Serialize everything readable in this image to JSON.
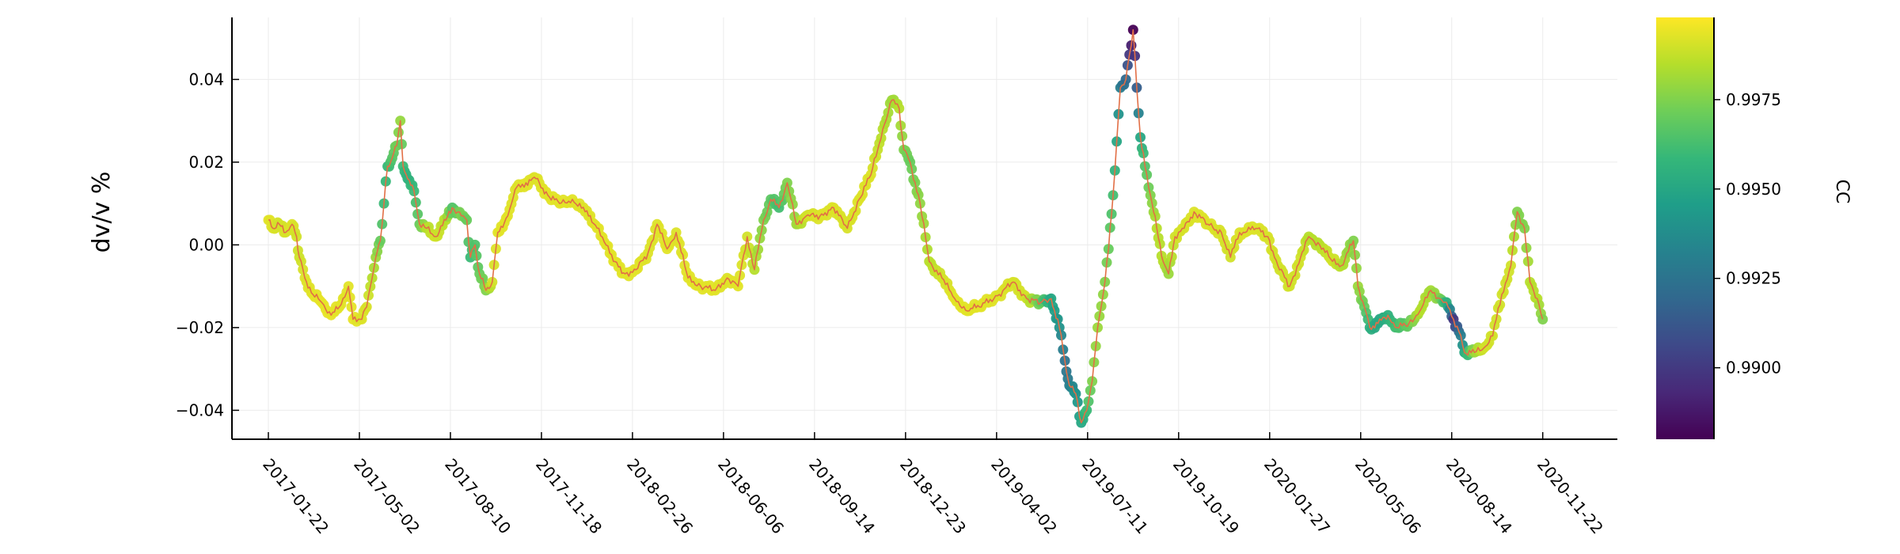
{
  "chart_data": {
    "type": "scatter",
    "title": "",
    "xlabel": "",
    "ylabel": "dv/v %",
    "ylim": [
      -0.047,
      0.055
    ],
    "xlim": [
      "2016-12-13",
      "2021-02-12"
    ],
    "grid": true,
    "x_ticks": [
      "2017-01-22",
      "2017-05-02",
      "2017-08-10",
      "2017-11-18",
      "2018-02-26",
      "2018-06-06",
      "2018-09-14",
      "2018-12-23",
      "2019-04-02",
      "2019-07-11",
      "2019-10-19",
      "2020-01-27",
      "2020-05-06",
      "2020-08-14",
      "2020-11-22"
    ],
    "y_ticks": [
      -0.04,
      -0.02,
      0.0,
      0.02,
      0.04
    ],
    "y_tick_labels": [
      "−0.04",
      "−0.02",
      "0.00",
      "0.02",
      "0.04"
    ],
    "colorbar": {
      "label": "CC",
      "colormap": "viridis",
      "range": [
        0.988,
        0.9998
      ],
      "ticks": [
        0.99,
        0.9925,
        0.995,
        0.9975
      ],
      "tick_labels": [
        "0.9900",
        "0.9925",
        "0.9950",
        "0.9975"
      ]
    },
    "line_color": "#e26f46",
    "series": [
      {
        "points": [
          [
            "2017-01-22",
            0.006,
            0.9993
          ],
          [
            "2017-01-27",
            0.004,
            0.9992
          ],
          [
            "2017-02-03",
            0.005,
            0.999
          ],
          [
            "2017-02-10",
            0.003,
            0.9991
          ],
          [
            "2017-02-17",
            0.005,
            0.9992
          ],
          [
            "2017-02-22",
            0.002,
            0.999
          ],
          [
            "2017-02-25",
            -0.003,
            0.9989
          ],
          [
            "2017-03-03",
            -0.008,
            0.9992
          ],
          [
            "2017-03-12",
            -0.012,
            0.9993
          ],
          [
            "2017-03-22",
            -0.014,
            0.9994
          ],
          [
            "2017-04-01",
            -0.017,
            0.9994
          ],
          [
            "2017-04-10",
            -0.015,
            0.9993
          ],
          [
            "2017-04-20",
            -0.01,
            0.9993
          ],
          [
            "2017-04-25",
            -0.018,
            0.9994
          ],
          [
            "2017-05-03",
            -0.018,
            0.9992
          ],
          [
            "2017-05-10",
            -0.015,
            0.9991
          ],
          [
            "2017-05-16",
            -0.008,
            0.9985
          ],
          [
            "2017-05-20",
            -0.003,
            0.998
          ],
          [
            "2017-05-25",
            0.001,
            0.997
          ],
          [
            "2017-05-29",
            0.01,
            0.996
          ],
          [
            "2017-06-02",
            0.019,
            0.9958
          ],
          [
            "2017-06-07",
            0.021,
            0.9966
          ],
          [
            "2017-06-12",
            0.024,
            0.9972
          ],
          [
            "2017-06-16",
            0.03,
            0.9979
          ],
          [
            "2017-06-19",
            0.019,
            0.996
          ],
          [
            "2017-06-24",
            0.016,
            0.9955
          ],
          [
            "2017-07-01",
            0.013,
            0.996
          ],
          [
            "2017-07-07",
            0.005,
            0.997
          ],
          [
            "2017-07-15",
            0.004,
            0.9985
          ],
          [
            "2017-07-25",
            0.002,
            0.999
          ],
          [
            "2017-08-05",
            0.006,
            0.9985
          ],
          [
            "2017-08-12",
            0.009,
            0.9965
          ],
          [
            "2017-08-22",
            0.007,
            0.9975
          ],
          [
            "2017-08-28",
            0.006,
            0.997
          ],
          [
            "2017-09-01",
            -0.003,
            0.996
          ],
          [
            "2017-09-06",
            0.0,
            0.9965
          ],
          [
            "2017-09-11",
            -0.007,
            0.997
          ],
          [
            "2017-09-18",
            -0.011,
            0.9975
          ],
          [
            "2017-09-25",
            -0.009,
            0.999
          ],
          [
            "2017-10-01",
            0.003,
            0.9993
          ],
          [
            "2017-10-12",
            0.007,
            0.9993
          ],
          [
            "2017-10-22",
            0.014,
            0.9992
          ],
          [
            "2017-11-01",
            0.015,
            0.9993
          ],
          [
            "2017-11-12",
            0.016,
            0.9992
          ],
          [
            "2017-11-25",
            0.012,
            0.9993
          ],
          [
            "2017-12-08",
            0.01,
            0.9993
          ],
          [
            "2017-12-22",
            0.011,
            0.9993
          ],
          [
            "2018-01-05",
            0.008,
            0.9992
          ],
          [
            "2018-01-20",
            0.004,
            0.9993
          ],
          [
            "2018-02-05",
            -0.004,
            0.9993
          ],
          [
            "2018-02-18",
            -0.007,
            0.9993
          ],
          [
            "2018-03-02",
            -0.006,
            0.9993
          ],
          [
            "2018-03-15",
            -0.002,
            0.9992
          ],
          [
            "2018-03-25",
            0.005,
            0.9992
          ],
          [
            "2018-04-05",
            -0.001,
            0.9993
          ],
          [
            "2018-04-15",
            0.003,
            0.9992
          ],
          [
            "2018-04-28",
            -0.008,
            0.9993
          ],
          [
            "2018-05-12",
            -0.01,
            0.9993
          ],
          [
            "2018-05-28",
            -0.011,
            0.9993
          ],
          [
            "2018-06-10",
            -0.008,
            0.9992
          ],
          [
            "2018-06-22",
            -0.01,
            0.9993
          ],
          [
            "2018-07-02",
            0.002,
            0.999
          ],
          [
            "2018-07-10",
            -0.006,
            0.9985
          ],
          [
            "2018-07-20",
            0.006,
            0.9975
          ],
          [
            "2018-07-28",
            0.011,
            0.9968
          ],
          [
            "2018-08-06",
            0.009,
            0.9962
          ],
          [
            "2018-08-15",
            0.015,
            0.9975
          ],
          [
            "2018-08-25",
            0.005,
            0.998
          ],
          [
            "2018-09-05",
            0.007,
            0.999
          ],
          [
            "2018-09-20",
            0.007,
            0.9992
          ],
          [
            "2018-10-05",
            0.009,
            0.9992
          ],
          [
            "2018-10-20",
            0.004,
            0.9991
          ],
          [
            "2018-11-02",
            0.011,
            0.9992
          ],
          [
            "2018-11-15",
            0.017,
            0.9992
          ],
          [
            "2018-11-28",
            0.028,
            0.9985
          ],
          [
            "2018-12-08",
            0.035,
            0.998
          ],
          [
            "2018-12-16",
            0.033,
            0.9985
          ],
          [
            "2018-12-21",
            0.023,
            0.9975
          ],
          [
            "2018-12-28",
            0.02,
            0.997
          ],
          [
            "2019-01-08",
            0.01,
            0.9978
          ],
          [
            "2019-01-18",
            -0.004,
            0.9985
          ],
          [
            "2019-02-01",
            -0.008,
            0.999
          ],
          [
            "2019-02-15",
            -0.013,
            0.9993
          ],
          [
            "2019-03-01",
            -0.016,
            0.9993
          ],
          [
            "2019-03-20",
            -0.014,
            0.9993
          ],
          [
            "2019-04-05",
            -0.012,
            0.9992
          ],
          [
            "2019-04-20",
            -0.009,
            0.9991
          ],
          [
            "2019-05-05",
            -0.013,
            0.999
          ],
          [
            "2019-05-20",
            -0.014,
            0.997
          ],
          [
            "2019-06-01",
            -0.013,
            0.995
          ],
          [
            "2019-06-10",
            -0.02,
            0.994
          ],
          [
            "2019-06-16",
            -0.028,
            0.9925
          ],
          [
            "2019-06-21",
            -0.034,
            0.993
          ],
          [
            "2019-06-28",
            -0.036,
            0.994
          ],
          [
            "2019-07-04",
            -0.043,
            0.995
          ],
          [
            "2019-07-10",
            -0.04,
            0.996
          ],
          [
            "2019-07-16",
            -0.033,
            0.9975
          ],
          [
            "2019-07-22",
            -0.02,
            0.998
          ],
          [
            "2019-07-28",
            -0.012,
            0.9978
          ],
          [
            "2019-08-03",
            -0.001,
            0.997
          ],
          [
            "2019-08-08",
            0.012,
            0.9962
          ],
          [
            "2019-08-12",
            0.025,
            0.995
          ],
          [
            "2019-08-16",
            0.038,
            0.993
          ],
          [
            "2019-08-22",
            0.04,
            0.992
          ],
          [
            "2019-08-26",
            0.046,
            0.99
          ],
          [
            "2019-08-30",
            0.052,
            0.988
          ],
          [
            "2019-09-03",
            0.038,
            0.9915
          ],
          [
            "2019-09-07",
            0.026,
            0.995
          ],
          [
            "2019-09-12",
            0.019,
            0.9965
          ],
          [
            "2019-09-18",
            0.012,
            0.9975
          ],
          [
            "2019-09-25",
            0.004,
            0.9985
          ],
          [
            "2019-10-02",
            -0.004,
            0.9985
          ],
          [
            "2019-10-08",
            -0.007,
            0.998
          ],
          [
            "2019-10-15",
            0.002,
            0.999
          ],
          [
            "2019-10-25",
            0.004,
            0.9991
          ],
          [
            "2019-11-05",
            0.008,
            0.9992
          ],
          [
            "2019-11-20",
            0.005,
            0.9992
          ],
          [
            "2019-12-05",
            0.003,
            0.9991
          ],
          [
            "2019-12-15",
            -0.003,
            0.999
          ],
          [
            "2019-12-25",
            0.003,
            0.9992
          ],
          [
            "2020-01-12",
            0.004,
            0.9992
          ],
          [
            "2020-01-25",
            0.002,
            0.9991
          ],
          [
            "2020-02-05",
            -0.005,
            0.999
          ],
          [
            "2020-02-18",
            -0.01,
            0.999
          ],
          [
            "2020-03-01",
            -0.003,
            0.999
          ],
          [
            "2020-03-10",
            0.002,
            0.9985
          ],
          [
            "2020-03-22",
            0.0,
            0.9985
          ],
          [
            "2020-04-05",
            -0.004,
            0.999
          ],
          [
            "2020-04-15",
            -0.005,
            0.9985
          ],
          [
            "2020-04-28",
            0.001,
            0.9975
          ],
          [
            "2020-05-03",
            -0.01,
            0.998
          ],
          [
            "2020-05-10",
            -0.015,
            0.997
          ],
          [
            "2020-05-16",
            -0.02,
            0.9955
          ],
          [
            "2020-05-25",
            -0.019,
            0.995
          ],
          [
            "2020-06-05",
            -0.017,
            0.9955
          ],
          [
            "2020-06-15",
            -0.02,
            0.9962
          ],
          [
            "2020-06-28",
            -0.019,
            0.997
          ],
          [
            "2020-07-10",
            -0.016,
            0.9985
          ],
          [
            "2020-07-22",
            -0.011,
            0.9982
          ],
          [
            "2020-08-01",
            -0.013,
            0.9975
          ],
          [
            "2020-08-10",
            -0.015,
            0.995
          ],
          [
            "2020-08-16",
            -0.018,
            0.99
          ],
          [
            "2020-08-22",
            -0.021,
            0.992
          ],
          [
            "2020-08-28",
            -0.026,
            0.995
          ],
          [
            "2020-09-08",
            -0.026,
            0.998
          ],
          [
            "2020-09-18",
            -0.025,
            0.999
          ],
          [
            "2020-09-28",
            -0.022,
            0.999
          ],
          [
            "2020-10-08",
            -0.012,
            0.999
          ],
          [
            "2020-10-18",
            -0.005,
            0.999
          ],
          [
            "2020-10-25",
            0.008,
            0.9975
          ],
          [
            "2020-11-02",
            0.004,
            0.9975
          ],
          [
            "2020-11-08",
            -0.009,
            0.9985
          ],
          [
            "2020-11-16",
            -0.013,
            0.9985
          ],
          [
            "2020-11-22",
            -0.018,
            0.9975
          ]
        ]
      }
    ]
  }
}
